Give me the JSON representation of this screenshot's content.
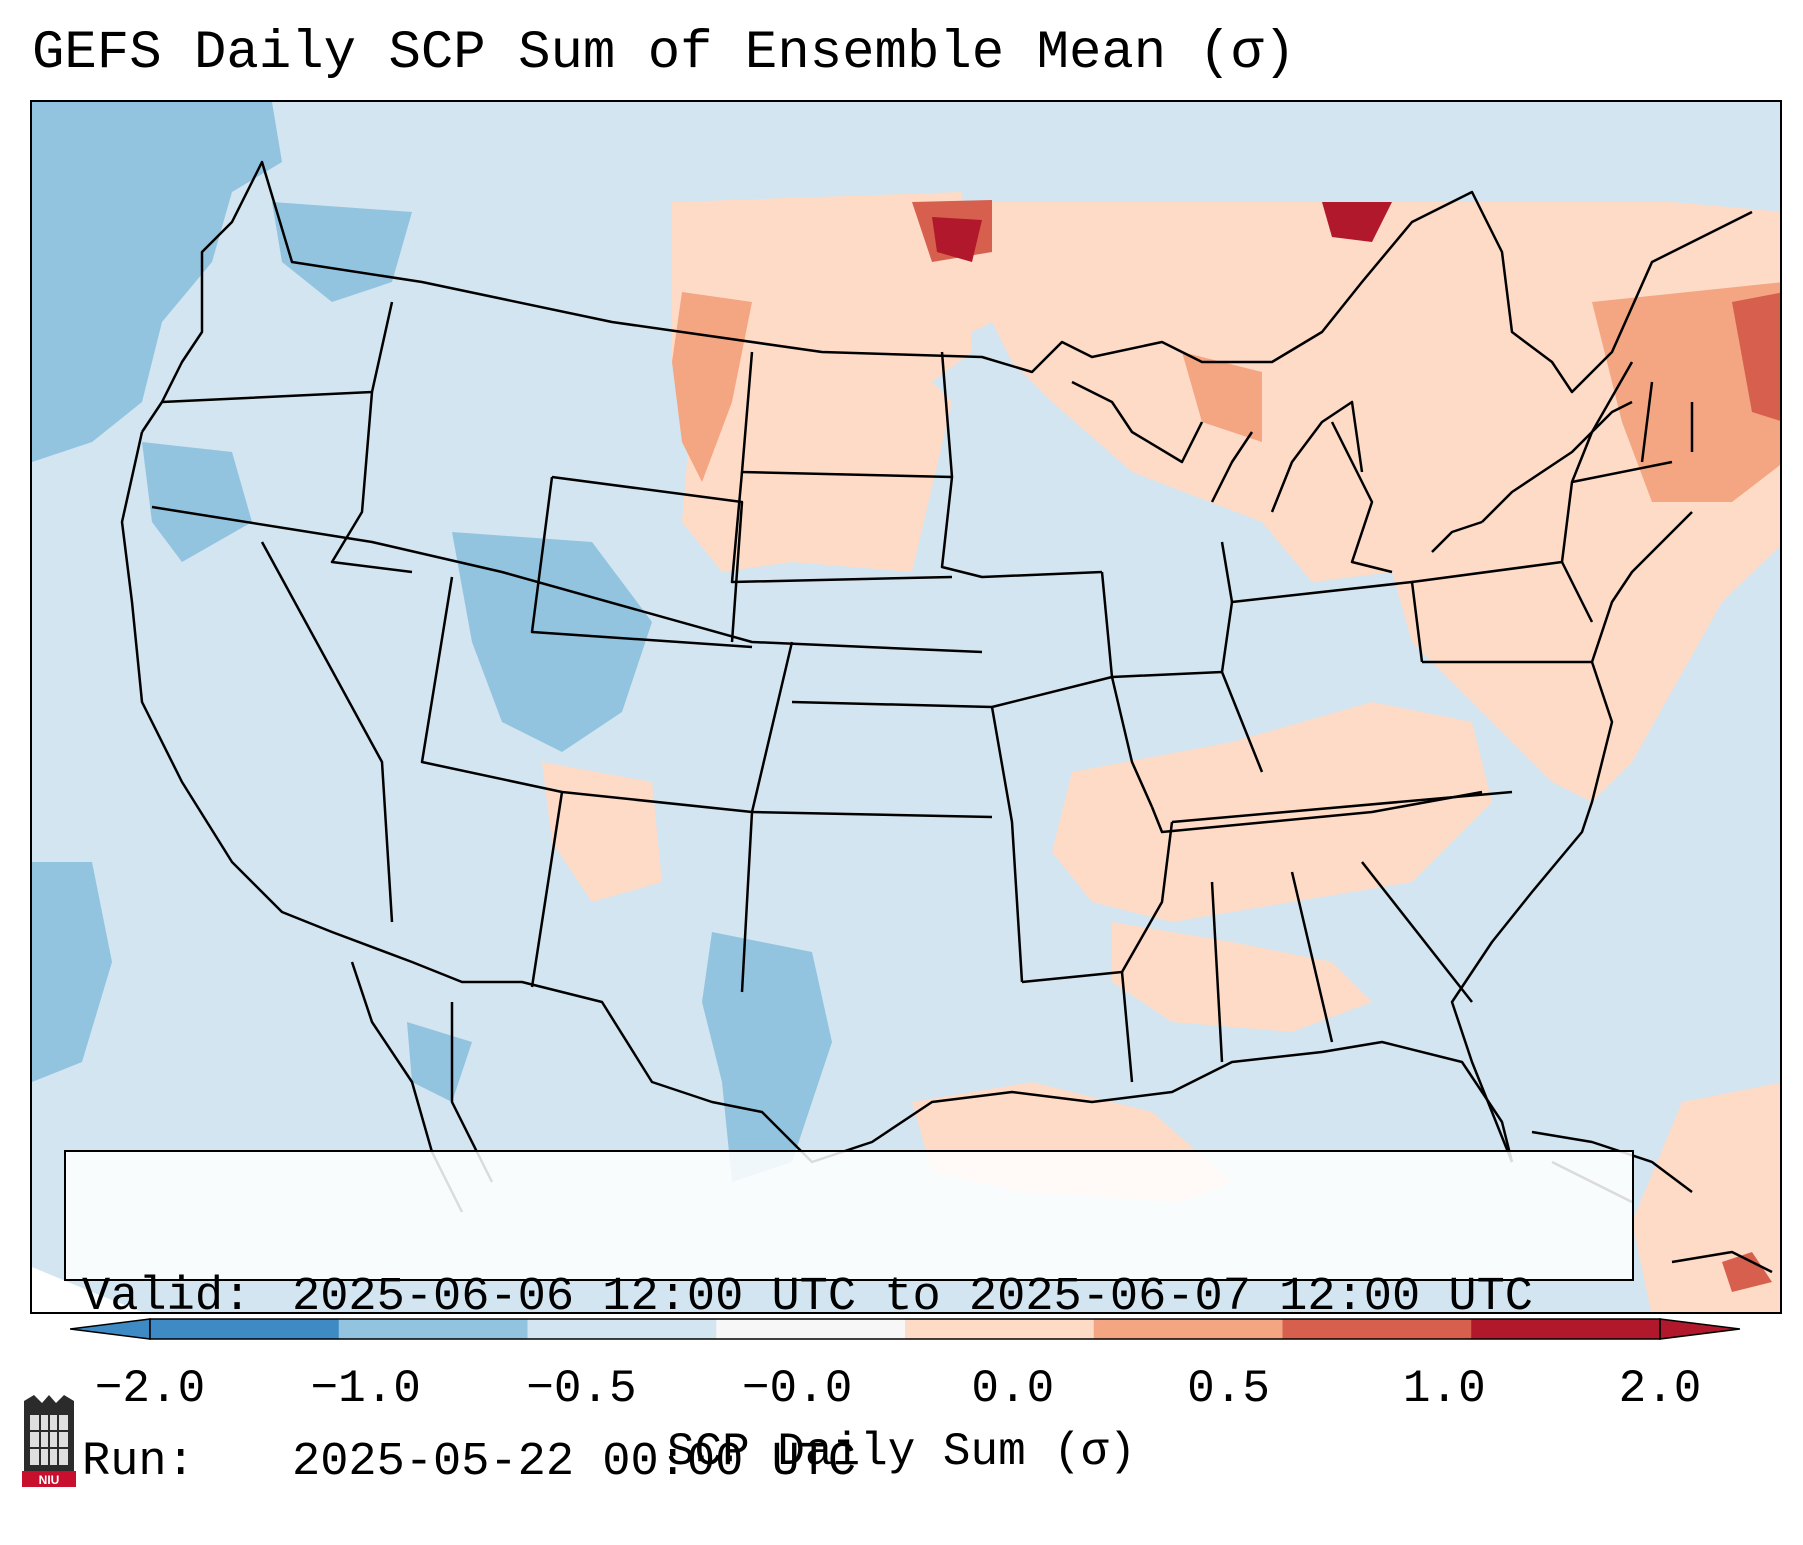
{
  "title": "GEFS Daily SCP Sum of Ensemble Mean (σ)",
  "info": {
    "valid_label": "Valid:",
    "valid_value": "2025-06-06 12:00 UTC to 2025-06-07 12:00 UTC",
    "run_label": "Run:",
    "run_value": "2025-05-22 00:00 UTC"
  },
  "colorbar": {
    "label": "SCP Daily Sum (σ)",
    "ticks": [
      "−2.0",
      "−1.0",
      "−0.5",
      "−0.0",
      "0.0",
      "0.5",
      "1.0",
      "2.0"
    ],
    "colors": [
      "#3e8ac4",
      "#92c4e0",
      "#d2e5f0",
      "#f7f7f7",
      "#fddbc7",
      "#f4a582",
      "#d6604d",
      "#b2182b"
    ]
  },
  "logo": {
    "text": "NIU"
  }
}
